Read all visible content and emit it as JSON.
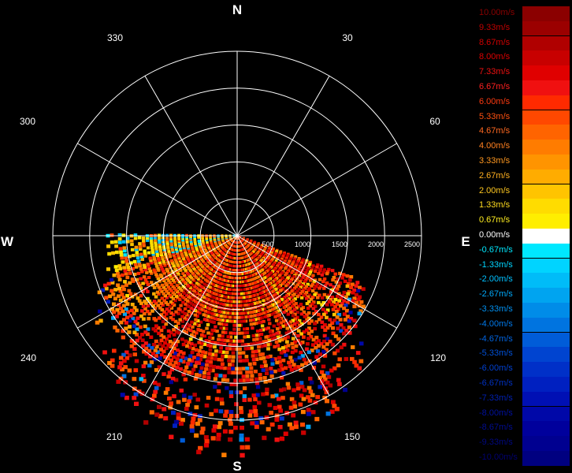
{
  "cardinals": {
    "north": "N",
    "east": "E",
    "south": "S",
    "west": "W"
  },
  "degree_labels": [
    "30",
    "60",
    "120",
    "150",
    "210",
    "240",
    "300",
    "330"
  ],
  "range_labels": [
    "500",
    "1000",
    "1500",
    "2000",
    "2500"
  ],
  "legend": [
    {
      "label": "10.00m/s",
      "color": "#8b0000",
      "text_color": "#8b0000"
    },
    {
      "label": "9.33m/s",
      "color": "#9b0000",
      "text_color": "#c00000"
    },
    {
      "label": "8.67m/s",
      "color": "#b00000",
      "text_color": "#d00000"
    },
    {
      "label": "8.00m/s",
      "color": "#c80000",
      "text_color": "#dd0000"
    },
    {
      "label": "7.33m/s",
      "color": "#e00000",
      "text_color": "#ee1010"
    },
    {
      "label": "6.67m/s",
      "color": "#f01010",
      "text_color": "#ff2020"
    },
    {
      "label": "6.00m/s",
      "color": "#ff2a00",
      "text_color": "#ff3a10"
    },
    {
      "label": "5.33m/s",
      "color": "#ff4800",
      "text_color": "#ff5010"
    },
    {
      "label": "4.67m/s",
      "color": "#ff6400",
      "text_color": "#ff6820"
    },
    {
      "label": "4.00m/s",
      "color": "#ff7c00",
      "text_color": "#ff8020"
    },
    {
      "label": "3.33m/s",
      "color": "#ff9400",
      "text_color": "#ff9820"
    },
    {
      "label": "2.67m/s",
      "color": "#ffac00",
      "text_color": "#ffb020"
    },
    {
      "label": "2.00m/s",
      "color": "#ffc400",
      "text_color": "#ffc820"
    },
    {
      "label": "1.33m/s",
      "color": "#ffdc00",
      "text_color": "#ffdc20"
    },
    {
      "label": "0.67m/s",
      "color": "#ffee00",
      "text_color": "#ffee20"
    },
    {
      "label": "0.00m/s",
      "color": "#ffffff",
      "text_color": "#ffffff"
    },
    {
      "label": "-0.67m/s",
      "color": "#00e8ff",
      "text_color": "#00e8ff"
    },
    {
      "label": "-1.33m/s",
      "color": "#00d4ff",
      "text_color": "#00d4ff"
    },
    {
      "label": "-2.00m/s",
      "color": "#00bcf8",
      "text_color": "#00c0ff"
    },
    {
      "label": "-2.67m/s",
      "color": "#00a4f0",
      "text_color": "#00a8f8"
    },
    {
      "label": "-3.33m/s",
      "color": "#008ce8",
      "text_color": "#0090f0"
    },
    {
      "label": "-4.00m/s",
      "color": "#0074e0",
      "text_color": "#0078e8"
    },
    {
      "label": "-4.67m/s",
      "color": "#005cd8",
      "text_color": "#0064e0"
    },
    {
      "label": "-5.33m/s",
      "color": "#0044d0",
      "text_color": "#0050d8"
    },
    {
      "label": "-6.00m/s",
      "color": "#0030c8",
      "text_color": "#0040d0"
    },
    {
      "label": "-6.67m/s",
      "color": "#0020c0",
      "text_color": "#0030c0"
    },
    {
      "label": "-7.33m/s",
      "color": "#0010b4",
      "text_color": "#0020b0"
    },
    {
      "label": "-8.00m/s",
      "color": "#0008a8",
      "text_color": "#0010a0"
    },
    {
      "label": "-8.67m/s",
      "color": "#00009c",
      "text_color": "#000c90"
    },
    {
      "label": "-9.33m/s",
      "color": "#000090",
      "text_color": "#000880"
    },
    {
      "label": "-10.00m/s",
      "color": "#000080",
      "text_color": "#000070"
    }
  ],
  "chart_data": {
    "type": "heatmap",
    "description_type": "polar radial velocity (PPI)",
    "units": "m/s",
    "value_range": [
      -10,
      10
    ],
    "range_max": 2500,
    "range_rings": [
      500,
      1000,
      1500,
      2000,
      2500
    ],
    "spoke_azimuths": [
      0,
      30,
      60,
      90,
      120,
      150,
      180,
      210,
      240,
      270,
      300,
      330
    ],
    "data_sector_azimuth": [
      110,
      270
    ],
    "dominant_values": "positive 3-8 m/s (receding), scattered negative values at far range"
  }
}
